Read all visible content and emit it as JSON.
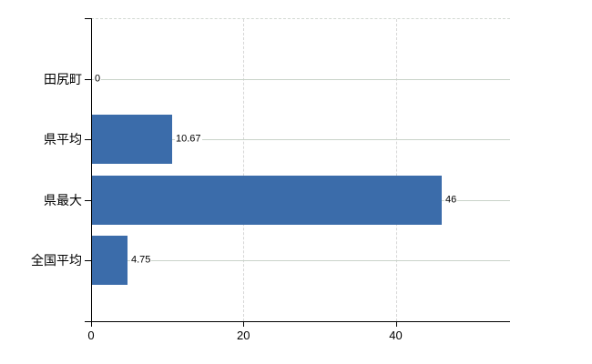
{
  "chart_data": {
    "type": "bar",
    "orientation": "horizontal",
    "title": "",
    "categories": [
      "田尻町",
      "県平均",
      "県最大",
      "全国平均"
    ],
    "values": [
      0,
      10.67,
      46,
      4.75
    ],
    "value_labels": [
      "0",
      "10.67",
      "46",
      "4.75"
    ],
    "x_ticks": [
      0,
      20,
      40
    ],
    "x_tick_labels": [
      "0",
      "20",
      "40"
    ],
    "xlim": [
      0,
      55
    ],
    "grid": true,
    "legend": false,
    "bar_color": "#3b6caa"
  },
  "colors": {
    "background": "#ffffff",
    "bar": "#3b6caa",
    "axis": "#000000",
    "text": "#000000",
    "h_gridline": "#c9d3c9",
    "v_gridline": "#d6d6d6",
    "top_border": "#d2d9d2"
  }
}
